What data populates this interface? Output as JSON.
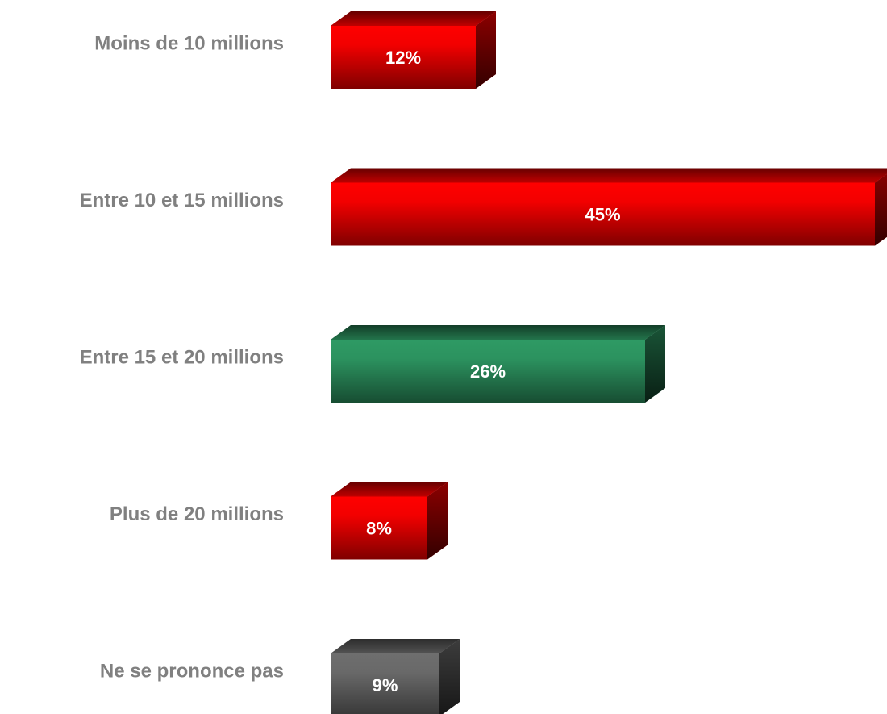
{
  "chart_data": {
    "type": "bar3d_horizontal",
    "categories": [
      "Moins de 10 millions",
      "Entre 10 et 15 millions",
      "Entre 15 et 20 millions",
      "Plus de 20 millions",
      "Ne se prononce pas"
    ],
    "values": [
      12,
      45,
      26,
      8,
      9
    ],
    "value_labels": [
      "12%",
      "45%",
      "26%",
      "8%",
      "9%"
    ],
    "colors": [
      "#ff0000",
      "#ff0000",
      "#2e9a64",
      "#ff0000",
      "#6e6e6e"
    ]
  }
}
